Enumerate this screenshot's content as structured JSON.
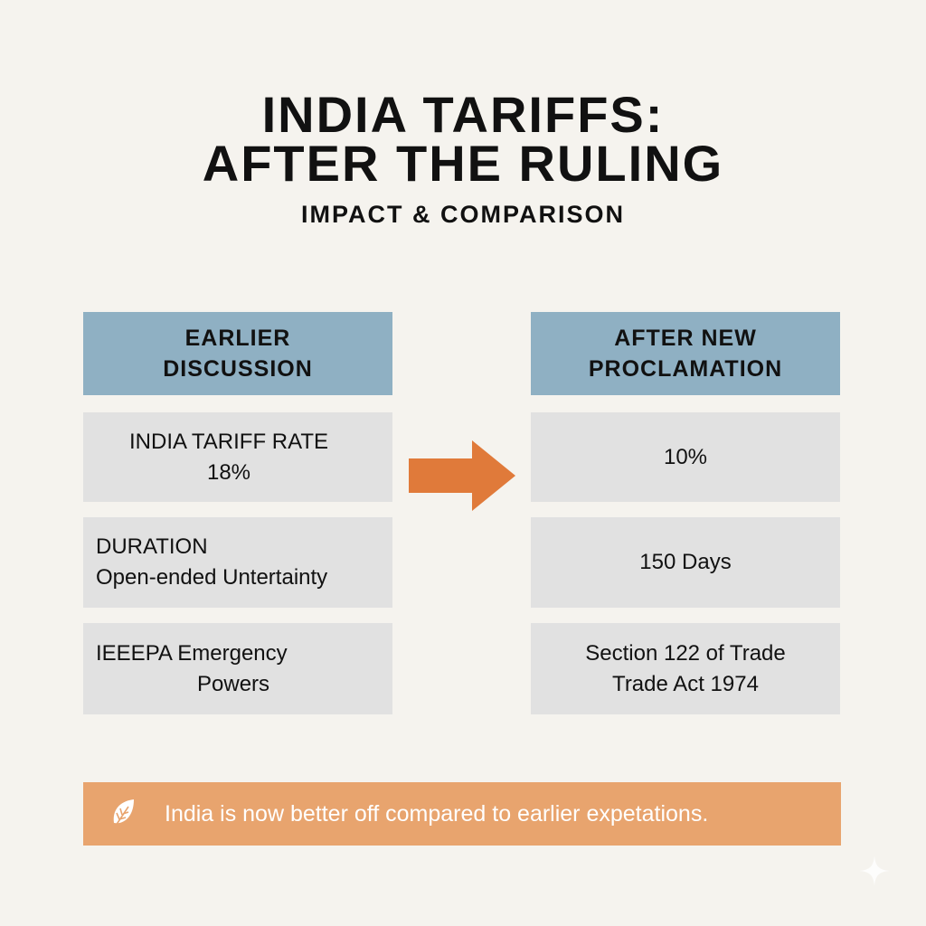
{
  "title": {
    "line1": "INDIA TARIFFS:",
    "line2": "AFTER THE RULING"
  },
  "subtitle": "IMPACT & COMPARISON",
  "columns": {
    "left": {
      "header_line1": "EARLIER",
      "header_line2": "DISCUSSION"
    },
    "right": {
      "header_line1": "AFTER NEW",
      "header_line2": "PROCLAMATION"
    }
  },
  "rows": [
    {
      "left_line1": "INDIA TARIFF RATE",
      "left_line2": "18%",
      "right_line1": "10%",
      "right_line2": ""
    },
    {
      "left_line1": "DURATION",
      "left_line2": "Open-ended Untertainty",
      "right_line1": "150 Days",
      "right_line2": ""
    },
    {
      "left_line1": "IEEEPA Emergency",
      "left_line2": "Powers",
      "right_line1": "Section 122 of Trade",
      "right_line2": "Trade Act 1974"
    }
  ],
  "banner": {
    "icon": "leaf-icon",
    "text": "India is now better off compared to earlier expetations."
  },
  "colors": {
    "header": "#8fb0c3",
    "cell": "#e1e1e1",
    "arrow": "#e07a3a",
    "banner": "#e8a46e",
    "background": "#f5f3ee"
  }
}
